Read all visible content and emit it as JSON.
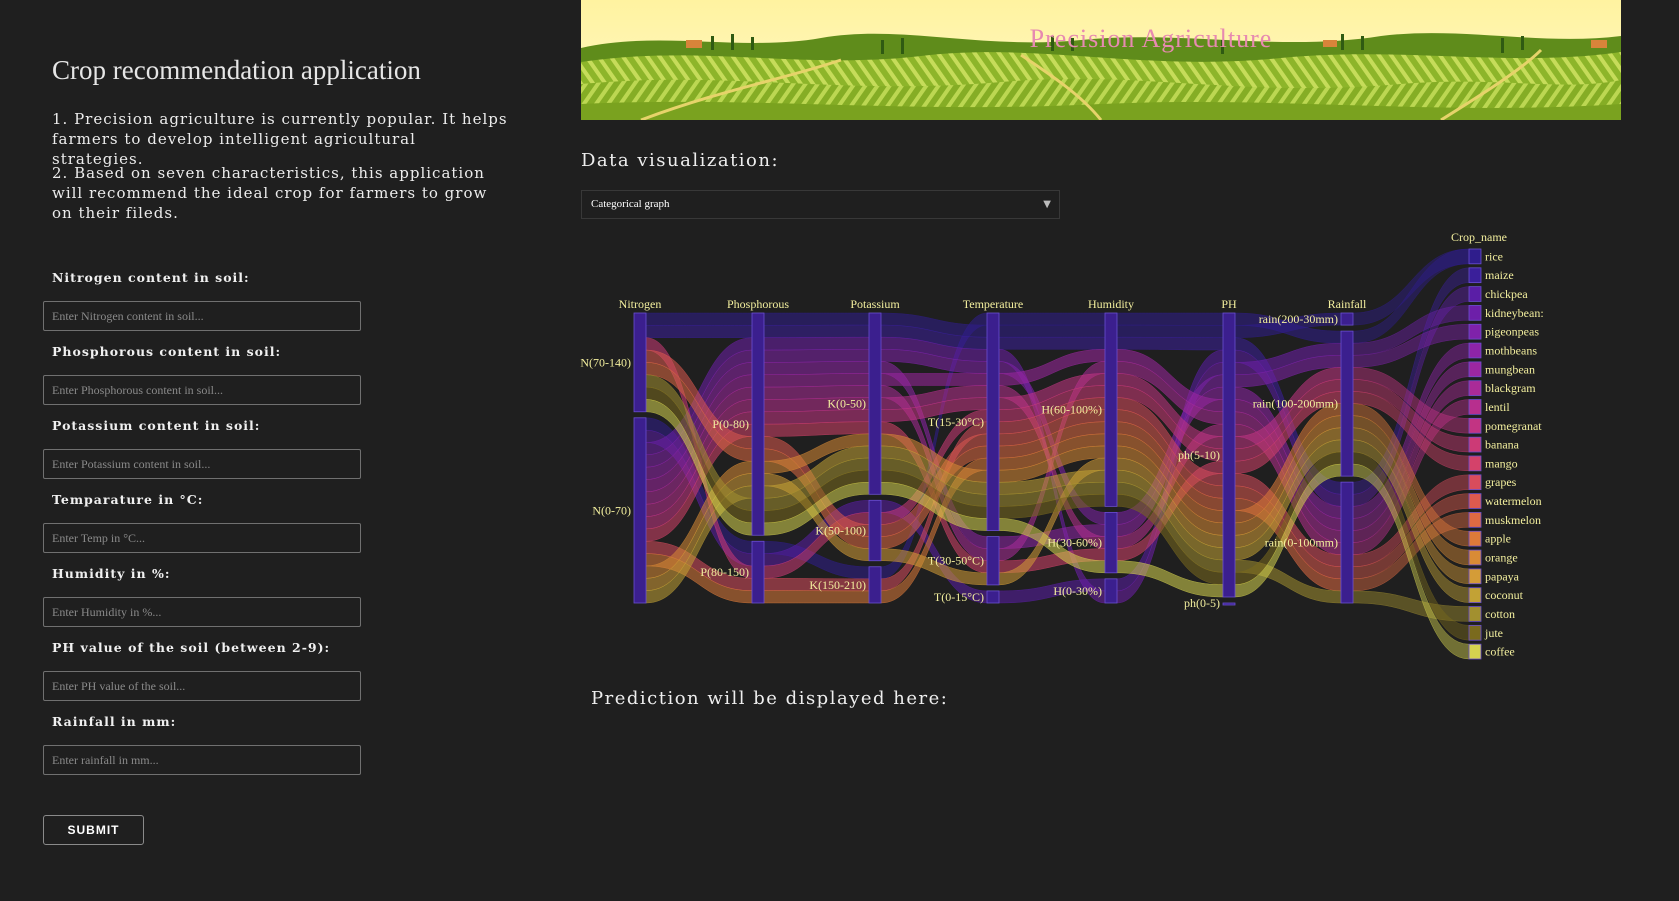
{
  "sidebar": {
    "title": "Crop recommendation application",
    "intro_1": "1. Precision agriculture is currently popular. It helps farmers to develop intelligent agricultural strategies.",
    "intro_2": "2. Based on seven characteristics, this application will recommend the ideal crop for farmers to grow on their fileds.",
    "fields": [
      {
        "label": "Nitrogen content in soil:",
        "placeholder": "Enter Nitrogen content in soil..."
      },
      {
        "label": "Phosphorous content in soil:",
        "placeholder": "Enter Phosphorous content in soil..."
      },
      {
        "label": "Potassium content in soil:",
        "placeholder": "Enter Potassium content in soil..."
      },
      {
        "label": "Temparature in °C:",
        "placeholder": "Enter Temp in °C..."
      },
      {
        "label": "Humidity in %:",
        "placeholder": "Enter Humidity in %..."
      },
      {
        "label": "PH value of the soil (between 2-9):",
        "placeholder": "Enter PH value of the soil..."
      },
      {
        "label": "Rainfall in mm:",
        "placeholder": "Enter rainfall in mm..."
      }
    ],
    "submit_label": "SUBMIT"
  },
  "main": {
    "banner_title": "Precision Agriculture",
    "viz_title": "Data visualization:",
    "graph_select_value": "Categorical graph",
    "prediction_title": "Prediction will be displayed here:"
  },
  "colors": {
    "background": "#1f1f1f",
    "axis_label": "#f3ef9e",
    "banner_title": "#e78ab0"
  },
  "chart_data": {
    "type": "parallel_categories",
    "dimensions": [
      {
        "name": "Nitrogen",
        "categories": [
          "N(70-140)",
          "N(0-70)"
        ]
      },
      {
        "name": "Phosphorous",
        "categories": [
          "P(0-80)",
          "P(80-150)"
        ]
      },
      {
        "name": "Potassium",
        "categories": [
          "K(0-50)",
          "K(50-100)",
          "K(150-210)"
        ]
      },
      {
        "name": "Temperature",
        "categories": [
          "T(15-30°C)",
          "T(30-50°C)",
          "T(0-15°C)"
        ]
      },
      {
        "name": "Humidity",
        "categories": [
          "H(60-100%)",
          "H(30-60%)",
          "H(0-30%)"
        ]
      },
      {
        "name": "PH",
        "categories": [
          "ph(5-10)",
          "ph(0-5)"
        ]
      },
      {
        "name": "Rainfall",
        "categories": [
          "rain(200-30mm)",
          "rain(100-200mm)",
          "rain(0-100mm)"
        ]
      }
    ],
    "color_dimension": "Crop_name",
    "crops": [
      "rice",
      "maize",
      "chickpea",
      "kidneybeans",
      "pigeonpeas",
      "mothbeans",
      "mungbean",
      "blackgram",
      "lentil",
      "pomegranate",
      "banana",
      "mango",
      "grapes",
      "watermelon",
      "muskmelon",
      "apple",
      "orange",
      "papaya",
      "coconut",
      "cotton",
      "jute",
      "coffee"
    ],
    "crop_labels": [
      "rice",
      "maize",
      "chickpea",
      "kidneybean:",
      "pigeonpeas",
      "mothbeans",
      "mungbean",
      "blackgram",
      "lentil",
      "pomegranat",
      "banana",
      "mango",
      "grapes",
      "watermelon",
      "muskmelon",
      "apple",
      "orange",
      "papaya",
      "coconut",
      "cotton",
      "jute",
      "coffee"
    ],
    "crop_colors": [
      "#2f1d8c",
      "#3a1f9a",
      "#5a1ea6",
      "#6d1fa9",
      "#7f22aa",
      "#8e24a8",
      "#9c27a1",
      "#aa2b98",
      "#b72f8e",
      "#c23483",
      "#cc3a76",
      "#d4426a",
      "#d94c5c",
      "#dd5a4e",
      "#de6a42",
      "#dd7a39",
      "#d98b35",
      "#d49c37",
      "#c2a235",
      "#a2902f",
      "#7a6a1d",
      "#d5d34f"
    ],
    "flows": [
      [
        "N(0-70)",
        "P(80-150)",
        "K(150-210)",
        "T(15-30°C)",
        "H(60-100%)",
        "ph(5-10)",
        "rain(100-200mm)",
        0
      ],
      [
        "N(70-140)",
        "P(0-80)",
        "K(0-50)",
        "T(15-30°C)",
        "H(60-100%)",
        "ph(5-10)",
        "rain(200-30mm)",
        0
      ],
      [
        "N(70-140)",
        "P(0-80)",
        "K(0-50)",
        "T(15-30°C)",
        "H(60-100%)",
        "ph(5-10)",
        "rain(0-100mm)",
        1
      ],
      [
        "N(0-70)",
        "P(80-150)",
        "K(50-100)",
        "T(0-15°C)",
        "H(0-30%)",
        "ph(5-10)",
        "rain(0-100mm)",
        2
      ],
      [
        "N(0-70)",
        "P(0-80)",
        "K(0-50)",
        "T(15-30°C)",
        "H(0-30%)",
        "ph(5-10)",
        "rain(100-200mm)",
        3
      ],
      [
        "N(0-70)",
        "P(0-80)",
        "K(0-50)",
        "T(15-30°C)",
        "H(30-60%)",
        "ph(5-10)",
        "rain(100-200mm)",
        4
      ],
      [
        "N(0-70)",
        "P(0-80)",
        "K(0-50)",
        "T(30-50°C)",
        "H(30-60%)",
        "ph(5-10)",
        "rain(0-100mm)",
        5
      ],
      [
        "N(0-70)",
        "P(0-80)",
        "K(0-50)",
        "T(15-30°C)",
        "H(60-100%)",
        "ph(5-10)",
        "rain(0-100mm)",
        6
      ],
      [
        "N(0-70)",
        "P(0-80)",
        "K(0-50)",
        "T(30-50°C)",
        "H(60-100%)",
        "ph(5-10)",
        "rain(0-100mm)",
        7
      ],
      [
        "N(0-70)",
        "P(0-80)",
        "K(0-50)",
        "T(15-30°C)",
        "H(30-60%)",
        "ph(5-10)",
        "rain(0-100mm)",
        8
      ],
      [
        "N(0-70)",
        "P(0-80)",
        "K(0-50)",
        "T(15-30°C)",
        "H(60-100%)",
        "ph(5-10)",
        "rain(100-200mm)",
        9
      ],
      [
        "N(70-140)",
        "P(80-150)",
        "K(50-100)",
        "T(15-30°C)",
        "H(60-100%)",
        "ph(5-10)",
        "rain(100-200mm)",
        10
      ],
      [
        "N(0-70)",
        "P(0-80)",
        "K(0-50)",
        "T(30-50°C)",
        "H(30-60%)",
        "ph(5-10)",
        "rain(100-200mm)",
        11
      ],
      [
        "N(0-70)",
        "P(80-150)",
        "K(150-210)",
        "T(15-30°C)",
        "H(60-100%)",
        "ph(5-10)",
        "rain(0-100mm)",
        12
      ],
      [
        "N(70-140)",
        "P(0-80)",
        "K(50-100)",
        "T(15-30°C)",
        "H(60-100%)",
        "ph(5-10)",
        "rain(0-100mm)",
        13
      ],
      [
        "N(70-140)",
        "P(0-80)",
        "K(50-100)",
        "T(15-30°C)",
        "H(60-100%)",
        "ph(5-10)",
        "rain(0-100mm)",
        14
      ],
      [
        "N(0-70)",
        "P(80-150)",
        "K(150-210)",
        "T(15-30°C)",
        "H(60-100%)",
        "ph(5-10)",
        "rain(100-200mm)",
        15
      ],
      [
        "N(0-70)",
        "P(0-80)",
        "K(0-50)",
        "T(15-30°C)",
        "H(60-100%)",
        "ph(5-10)",
        "rain(100-200mm)",
        16
      ],
      [
        "N(0-70)",
        "P(0-80)",
        "K(50-100)",
        "T(30-50°C)",
        "H(60-100%)",
        "ph(5-10)",
        "rain(100-200mm)",
        17
      ],
      [
        "N(0-70)",
        "P(0-80)",
        "K(0-50)",
        "T(15-30°C)",
        "H(60-100%)",
        "ph(5-10)",
        "rain(100-200mm)",
        18
      ],
      [
        "N(70-140)",
        "P(0-80)",
        "K(0-50)",
        "T(15-30°C)",
        "H(60-100%)",
        "ph(5-10)",
        "rain(0-100mm)",
        19
      ],
      [
        "N(70-140)",
        "P(0-80)",
        "K(0-50)",
        "T(15-30°C)",
        "H(60-100%)",
        "ph(5-10)",
        "rain(100-200mm)",
        20
      ],
      [
        "N(70-140)",
        "P(0-80)",
        "K(0-50)",
        "T(15-30°C)",
        "H(30-60%)",
        "ph(5-10)",
        "rain(100-200mm)",
        21
      ]
    ]
  }
}
